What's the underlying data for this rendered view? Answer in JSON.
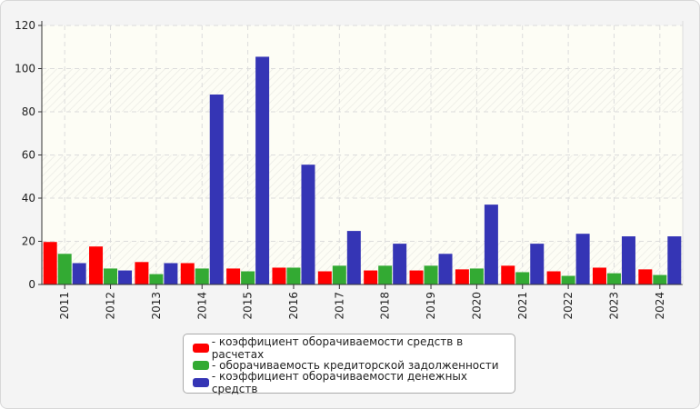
{
  "chart_data": {
    "type": "bar",
    "title": "",
    "xlabel": "",
    "ylabel": "",
    "ylim": [
      0,
      120
    ],
    "yticks": [
      "0",
      "20",
      "40",
      "60",
      "80",
      "100",
      "120"
    ],
    "grid": true,
    "legend_position": "bottom-center",
    "categories": [
      "2011",
      "2012",
      "2013",
      "2014",
      "2015",
      "2016",
      "2017",
      "2018",
      "2019",
      "2020",
      "2021",
      "2022",
      "2023",
      "2024"
    ],
    "series": [
      {
        "name": "- коэффициент оборачиваемости средств в расчетах",
        "color": "#ff0000",
        "values": [
          19.7,
          17.6,
          10.4,
          9.9,
          7.4,
          7.8,
          6.1,
          6.5,
          6.5,
          7.0,
          8.7,
          6.1,
          7.8,
          7.0
        ]
      },
      {
        "name": "- оборачиваемость кредиторской задолженности",
        "color": "#33aa33",
        "values": [
          14.2,
          7.4,
          4.8,
          7.4,
          6.1,
          7.8,
          8.7,
          8.7,
          8.7,
          7.4,
          5.7,
          4.0,
          5.2,
          4.4
        ]
      },
      {
        "name": "- коэффициент оборачиваемости денежных средств",
        "color": "#3535b5",
        "values": [
          9.9,
          6.5,
          9.9,
          88.0,
          105.5,
          55.5,
          24.8,
          18.9,
          14.2,
          37.0,
          18.9,
          23.5,
          22.3,
          22.3
        ]
      }
    ]
  }
}
